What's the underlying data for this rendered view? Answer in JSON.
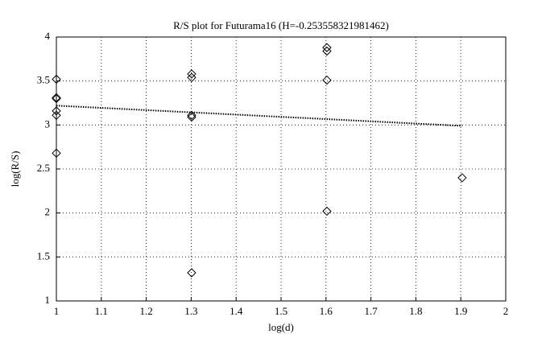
{
  "chart_data": {
    "type": "scatter",
    "title": "R/S plot for Futurama16 (H=-0.253558321981462)",
    "x_label": "log(d)",
    "y_label": "log(R/S)",
    "xlim": [
      1,
      2
    ],
    "ylim": [
      1,
      4
    ],
    "xticks": [
      1,
      1.1,
      1.2,
      1.3,
      1.4,
      1.5,
      1.6,
      1.7,
      1.8,
      1.9,
      2
    ],
    "yticks": [
      1,
      1.5,
      2,
      2.5,
      3,
      3.5,
      4
    ],
    "grid": true,
    "series": [
      {
        "color": "#000000",
        "marker": "diamond",
        "x": [
          1,
          1,
          1,
          1,
          1,
          1,
          1.301,
          1.301,
          1.301,
          1.301,
          1.301,
          1.602,
          1.602,
          1.602,
          1.602,
          1.903
        ],
        "values": [
          3.52,
          3.31,
          3.3,
          3.16,
          3.11,
          2.68,
          3.58,
          3.54,
          3.11,
          3.09,
          1.32,
          3.88,
          3.84,
          3.51,
          2.02,
          2.4
        ]
      },
      {
        "color": "#000000",
        "line_style": "dotted",
        "x": [
          1,
          1.903
        ],
        "values": [
          3.22,
          2.99
        ]
      }
    ]
  }
}
